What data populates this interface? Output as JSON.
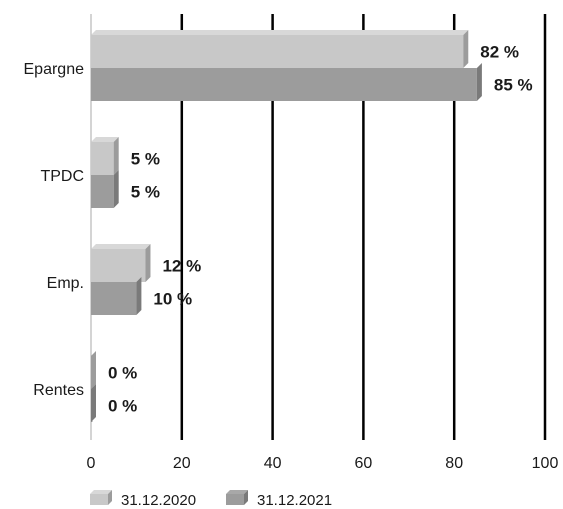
{
  "chart_data": {
    "type": "bar",
    "orientation": "horizontal",
    "style": "3d-extruded",
    "categories": [
      "Epargne",
      "TPDC",
      "Emp.",
      "Rentes"
    ],
    "series": [
      {
        "name": "31.12.2020",
        "values": [
          82,
          5,
          12,
          0
        ],
        "labels": [
          "82 %",
          "5 %",
          "12 %",
          "0 %"
        ],
        "color": "#c8c8c8"
      },
      {
        "name": "31.12.2021",
        "values": [
          85,
          5,
          10,
          0
        ],
        "labels": [
          "85 %",
          "5 %",
          "10 %",
          "0 %"
        ],
        "color": "#9c9c9c"
      }
    ],
    "xlim": [
      0,
      100
    ],
    "xticks": [
      0,
      20,
      40,
      60,
      80,
      100
    ],
    "xtick_labels": [
      "0",
      "20",
      "40",
      "60",
      "80",
      "100"
    ],
    "grid": "vertical",
    "legend": "bottom-left",
    "title": "",
    "xlabel": "",
    "ylabel": ""
  }
}
